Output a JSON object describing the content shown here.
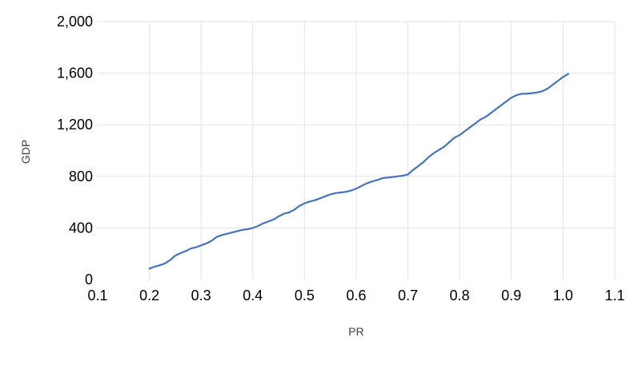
{
  "chart_data": {
    "type": "line",
    "title": "",
    "xlabel": "PR",
    "ylabel": "GDP",
    "xlim": [
      0.1,
      1.1
    ],
    "ylim": [
      0,
      2000
    ],
    "x_ticks": [
      "0.1",
      "0.2",
      "0.3",
      "0.4",
      "0.5",
      "0.6",
      "0.7",
      "0.8",
      "0.9",
      "1.0",
      "1.1"
    ],
    "y_ticks": [
      "0",
      "400",
      "800",
      "1,200",
      "1,600",
      "2,000"
    ],
    "grid": true,
    "legend": "none",
    "series": [
      {
        "color": "#4472C4",
        "x": [
          0.2,
          0.21,
          0.22,
          0.23,
          0.24,
          0.25,
          0.26,
          0.27,
          0.28,
          0.29,
          0.3,
          0.31,
          0.32,
          0.33,
          0.34,
          0.35,
          0.36,
          0.37,
          0.38,
          0.39,
          0.4,
          0.41,
          0.42,
          0.43,
          0.44,
          0.45,
          0.46,
          0.47,
          0.48,
          0.49,
          0.5,
          0.51,
          0.52,
          0.53,
          0.54,
          0.55,
          0.56,
          0.57,
          0.58,
          0.59,
          0.6,
          0.61,
          0.62,
          0.63,
          0.64,
          0.65,
          0.66,
          0.67,
          0.68,
          0.69,
          0.7,
          0.71,
          0.72,
          0.73,
          0.74,
          0.75,
          0.76,
          0.77,
          0.78,
          0.79,
          0.8,
          0.81,
          0.82,
          0.83,
          0.84,
          0.85,
          0.86,
          0.87,
          0.88,
          0.89,
          0.9,
          0.91,
          0.92,
          0.93,
          0.94,
          0.95,
          0.96,
          0.97,
          0.98,
          0.99,
          1.0,
          1.01
        ],
        "y": [
          85,
          100,
          110,
          125,
          150,
          185,
          205,
          220,
          240,
          250,
          265,
          280,
          300,
          330,
          345,
          355,
          365,
          375,
          385,
          390,
          400,
          415,
          435,
          450,
          465,
          490,
          510,
          520,
          540,
          570,
          590,
          605,
          615,
          630,
          645,
          660,
          670,
          675,
          680,
          690,
          705,
          725,
          745,
          760,
          770,
          785,
          790,
          795,
          800,
          805,
          815,
          850,
          880,
          910,
          950,
          980,
          1005,
          1030,
          1065,
          1100,
          1120,
          1150,
          1180,
          1210,
          1240,
          1260,
          1290,
          1320,
          1350,
          1380,
          1410,
          1430,
          1440,
          1440,
          1445,
          1450,
          1460,
          1480,
          1510,
          1540,
          1570,
          1595
        ]
      }
    ]
  }
}
